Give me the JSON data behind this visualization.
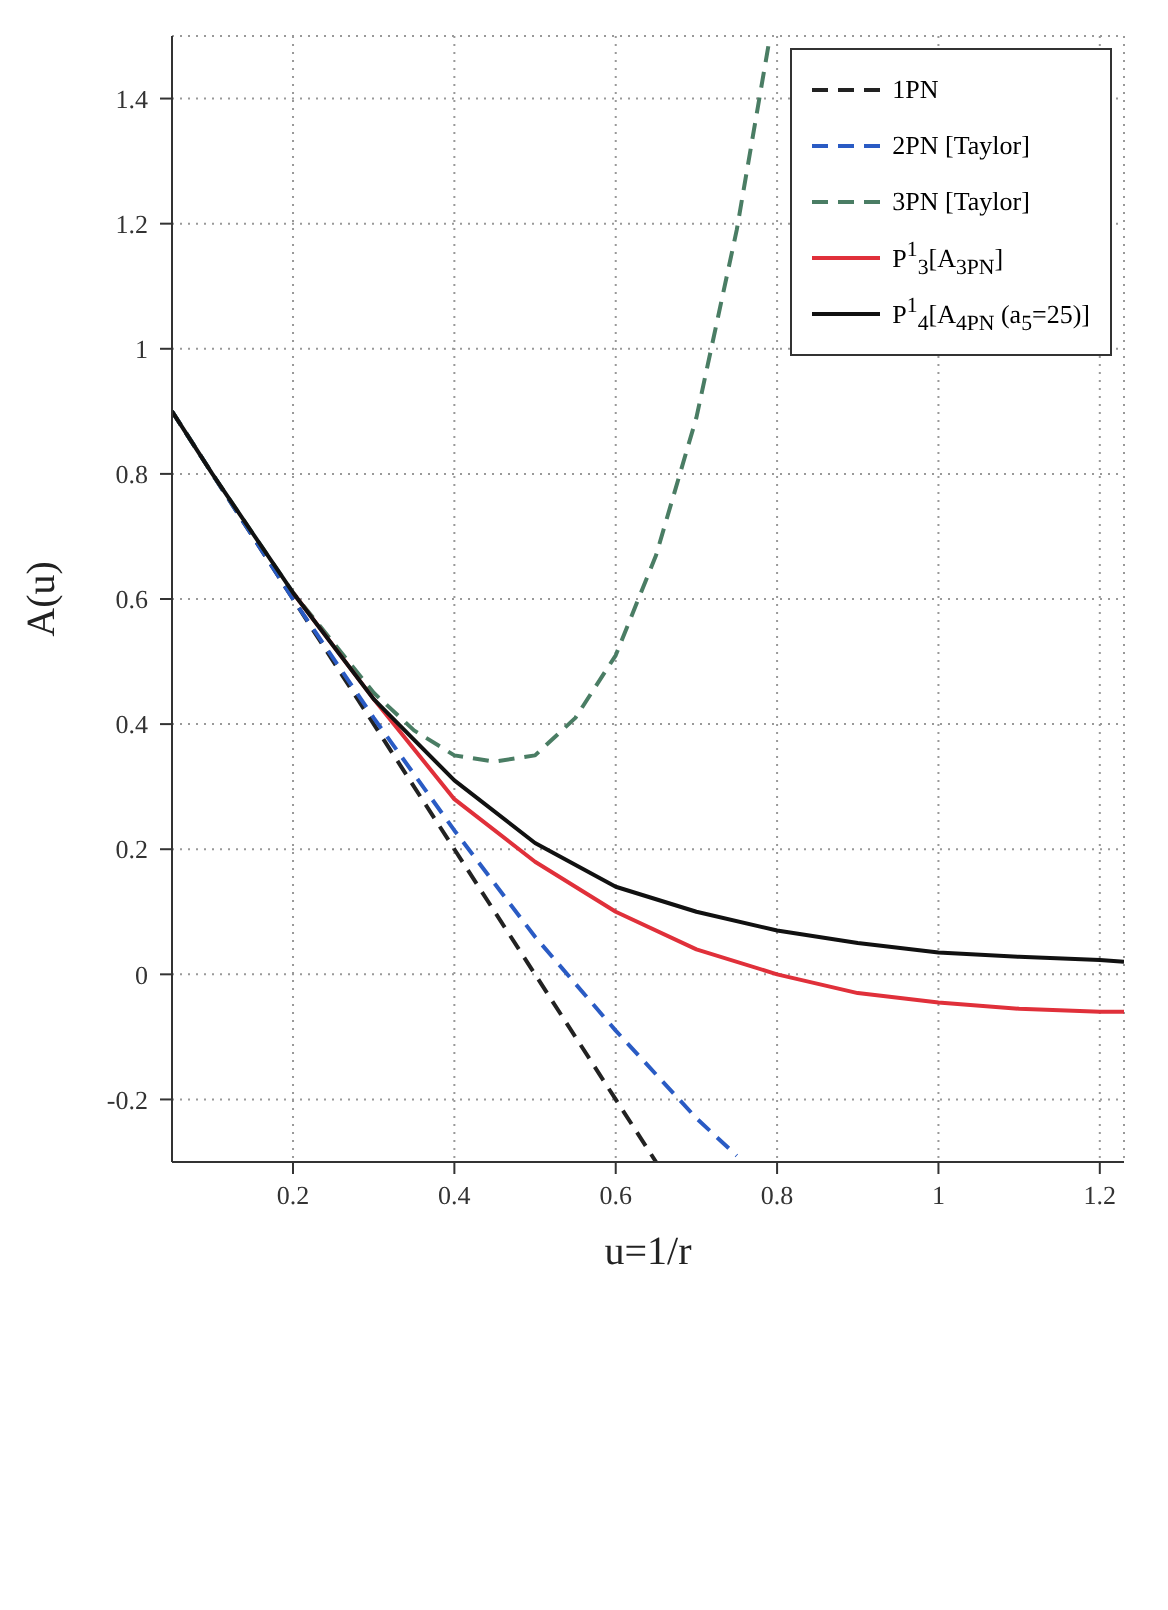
{
  "chart_data": {
    "type": "line",
    "xlabel": "u=1/r",
    "ylabel": "A(u)",
    "xlim": [
      0.05,
      1.23
    ],
    "ylim": [
      -0.3,
      1.5
    ],
    "xticks": [
      0.2,
      0.4,
      0.6,
      0.8,
      1,
      1.2
    ],
    "yticks": [
      -0.2,
      0,
      0.2,
      0.4,
      0.6,
      0.8,
      1,
      1.2,
      1.4
    ],
    "grid": true,
    "legend": "top right",
    "marker": "none",
    "series": [
      {
        "name": "1PN",
        "color": "#222222",
        "line_style": "dashed",
        "x": [
          0.05,
          0.2,
          0.4,
          0.6,
          0.65
        ],
        "values": [
          0.9,
          0.6,
          0.2,
          -0.2,
          -0.3
        ]
      },
      {
        "name": "2PN [Taylor]",
        "color": "#2a5bc4",
        "line_style": "dashed",
        "x": [
          0.05,
          0.1,
          0.2,
          0.3,
          0.4,
          0.5,
          0.6,
          0.7,
          0.75
        ],
        "values": [
          0.9,
          0.8,
          0.6,
          0.41,
          0.23,
          0.06,
          -0.09,
          -0.23,
          -0.29
        ]
      },
      {
        "name": "3PN [Taylor]",
        "color": "#4a7d64",
        "line_style": "dashed",
        "x": [
          0.05,
          0.1,
          0.2,
          0.3,
          0.35,
          0.4,
          0.45,
          0.5,
          0.55,
          0.6,
          0.65,
          0.7,
          0.75,
          0.79
        ],
        "values": [
          0.9,
          0.8,
          0.61,
          0.45,
          0.39,
          0.35,
          0.34,
          0.35,
          0.41,
          0.51,
          0.67,
          0.89,
          1.19,
          1.49
        ]
      },
      {
        "name": "P$^{1}$$_{3}$[A$_{3PN}$]",
        "color": "#e0303a",
        "line_style": "solid",
        "x": [
          0.2,
          0.3,
          0.4,
          0.5,
          0.6,
          0.7,
          0.8,
          0.9,
          1,
          1.1,
          1.2,
          1.23
        ],
        "values": [
          0.61,
          0.44,
          0.28,
          0.18,
          0.1,
          0.04,
          0,
          -0.03,
          -0.045,
          -0.055,
          -0.06,
          -0.06
        ]
      },
      {
        "name": "P$^{1}$$_{4}$[A$_{4PN}$ (a$_{5}$=25)]",
        "color": "#111111",
        "line_style": "solid",
        "x": [
          0.05,
          0.1,
          0.2,
          0.3,
          0.4,
          0.5,
          0.6,
          0.7,
          0.8,
          0.9,
          1,
          1.1,
          1.2,
          1.23
        ],
        "values": [
          0.9,
          0.8,
          0.61,
          0.44,
          0.31,
          0.21,
          0.14,
          0.1,
          0.07,
          0.05,
          0.035,
          0.028,
          0.023,
          0.02
        ]
      }
    ]
  }
}
